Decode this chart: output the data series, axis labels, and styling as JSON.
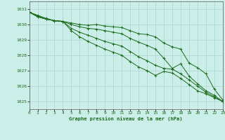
{
  "xlabel": "Graphe pression niveau de la mer (hPa)",
  "background_color": "#cceee8",
  "grid_color": "#aad4ce",
  "line_color": "#1a6b1a",
  "xlim": [
    0,
    23
  ],
  "ylim": [
    1024.5,
    1031.5
  ],
  "yticks": [
    1025,
    1026,
    1027,
    1028,
    1029,
    1030,
    1031
  ],
  "xticks": [
    0,
    1,
    2,
    3,
    4,
    5,
    6,
    7,
    8,
    9,
    10,
    11,
    12,
    13,
    14,
    15,
    16,
    17,
    18,
    19,
    20,
    21,
    22,
    23
  ],
  "series": [
    [
      1030.8,
      1030.6,
      1030.4,
      1030.25,
      1030.2,
      1030.1,
      1030.0,
      1029.95,
      1030.0,
      1029.9,
      1029.85,
      1029.8,
      1029.6,
      1029.4,
      1029.35,
      1029.2,
      1028.8,
      1028.55,
      1028.4,
      1027.5,
      1027.2,
      1026.8,
      1025.8,
      1025.1
    ],
    [
      1030.8,
      1030.55,
      1030.35,
      1030.25,
      1030.2,
      1030.0,
      1029.85,
      1029.75,
      1029.7,
      1029.6,
      1029.5,
      1029.4,
      1029.1,
      1028.85,
      1028.65,
      1028.4,
      1027.8,
      1027.15,
      1027.45,
      1026.65,
      1026.15,
      1025.7,
      1025.4,
      1025.0
    ],
    [
      1030.8,
      1030.5,
      1030.35,
      1030.25,
      1030.2,
      1029.75,
      1029.5,
      1029.3,
      1029.1,
      1028.9,
      1028.75,
      1028.6,
      1028.25,
      1027.9,
      1027.65,
      1027.35,
      1027.15,
      1027.1,
      1026.8,
      1026.4,
      1026.0,
      1025.6,
      1025.3,
      1025.0
    ],
    [
      1030.8,
      1030.5,
      1030.35,
      1030.25,
      1030.2,
      1029.6,
      1029.2,
      1028.9,
      1028.65,
      1028.4,
      1028.2,
      1028.0,
      1027.6,
      1027.25,
      1027.0,
      1026.7,
      1026.95,
      1026.85,
      1026.5,
      1026.1,
      1025.7,
      1025.5,
      1025.25,
      1025.0
    ]
  ]
}
